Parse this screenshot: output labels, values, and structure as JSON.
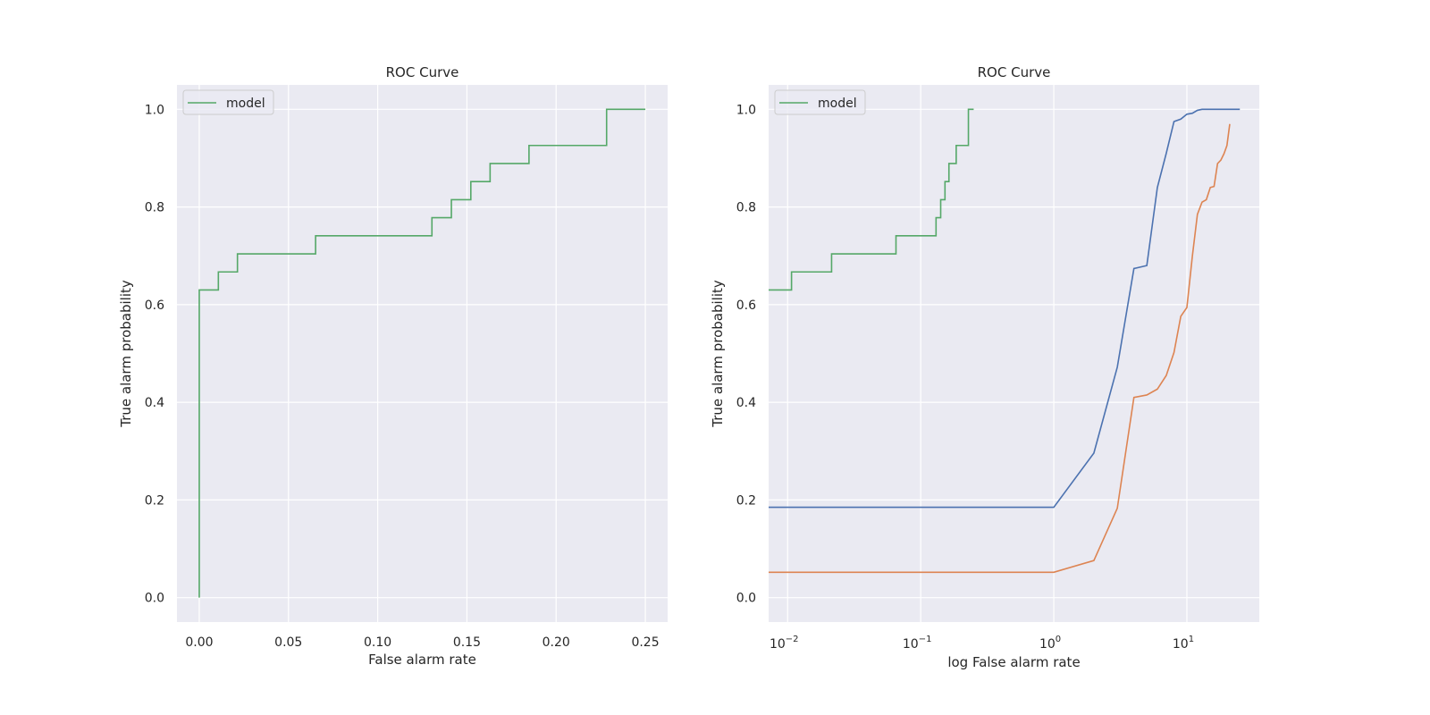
{
  "chart_data": [
    {
      "type": "line",
      "title": "ROC Curve",
      "xlabel": "False alarm rate",
      "ylabel": "True alarm probability",
      "xscale": "linear",
      "xlim": [
        -0.0125,
        0.2625
      ],
      "ylim": [
        -0.05,
        1.05
      ],
      "x_ticks": [
        0.0,
        0.05,
        0.1,
        0.15,
        0.2,
        0.25
      ],
      "x_tick_labels": [
        "0.00",
        "0.05",
        "0.10",
        "0.15",
        "0.20",
        "0.25"
      ],
      "y_ticks": [
        0.0,
        0.2,
        0.4,
        0.6,
        0.8,
        1.0
      ],
      "y_tick_labels": [
        "0.0",
        "0.2",
        "0.4",
        "0.6",
        "0.8",
        "1.0"
      ],
      "grid": true,
      "legend": "upper left",
      "series": [
        {
          "name": "model",
          "color": "#55a868",
          "x": [
            0.0,
            0.0,
            0.0107,
            0.0107,
            0.0214,
            0.0214,
            0.0652,
            0.0652,
            0.1304,
            0.1304,
            0.1413,
            0.1413,
            0.1522,
            0.1522,
            0.163,
            0.163,
            0.1848,
            0.1848,
            0.2283,
            0.2283,
            0.25
          ],
          "y": [
            0.0,
            0.63,
            0.63,
            0.667,
            0.667,
            0.704,
            0.704,
            0.741,
            0.741,
            0.778,
            0.778,
            0.815,
            0.815,
            0.852,
            0.852,
            0.889,
            0.889,
            0.926,
            0.926,
            1.0,
            1.0
          ]
        }
      ]
    },
    {
      "type": "line",
      "title": "ROC Curve",
      "xlabel": "log False alarm rate",
      "ylabel": "True alarm probability",
      "xscale": "log",
      "xlim": [
        0.0072,
        35
      ],
      "ylim": [
        -0.05,
        1.05
      ],
      "x_ticks": [
        0.01,
        0.1,
        1,
        10
      ],
      "x_tick_bases": [
        "10",
        "10",
        "10",
        "10"
      ],
      "x_tick_exponents": [
        "−2",
        "−1",
        "0",
        "1"
      ],
      "y_ticks": [
        0.0,
        0.2,
        0.4,
        0.6,
        0.8,
        1.0
      ],
      "y_tick_labels": [
        "0.0",
        "0.2",
        "0.4",
        "0.6",
        "0.8",
        "1.0"
      ],
      "grid": true,
      "legend": "upper left",
      "series": [
        {
          "name": "model",
          "color": "#55a868",
          "x": [
            0.0072,
            0.0107,
            0.0107,
            0.0214,
            0.0214,
            0.0652,
            0.0652,
            0.1304,
            0.1304,
            0.1413,
            0.1413,
            0.1522,
            0.1522,
            0.163,
            0.163,
            0.1848,
            0.1848,
            0.2283,
            0.2283,
            0.25
          ],
          "y": [
            0.63,
            0.63,
            0.667,
            0.667,
            0.704,
            0.704,
            0.741,
            0.741,
            0.778,
            0.778,
            0.815,
            0.815,
            0.852,
            0.852,
            0.889,
            0.889,
            0.926,
            0.926,
            1.0,
            1.0
          ]
        },
        {
          "color": "#4c72b0",
          "x": [
            0.0072,
            1,
            2,
            3,
            4,
            5,
            6,
            7,
            8,
            9,
            10,
            11,
            12,
            13,
            15,
            20,
            25
          ],
          "y": [
            0.185,
            0.185,
            0.296,
            0.472,
            0.674,
            0.68,
            0.84,
            0.91,
            0.975,
            0.98,
            0.99,
            0.992,
            0.998,
            1.0,
            1.0,
            1.0,
            1.0
          ]
        },
        {
          "color": "#dd8452",
          "x": [
            0.0072,
            1,
            2,
            3,
            4,
            5,
            6,
            7,
            8,
            9,
            10,
            11,
            12,
            13,
            14,
            15,
            16,
            17,
            18,
            19,
            20,
            21
          ],
          "y": [
            0.052,
            0.052,
            0.076,
            0.183,
            0.41,
            0.415,
            0.427,
            0.455,
            0.502,
            0.576,
            0.594,
            0.7,
            0.785,
            0.81,
            0.815,
            0.84,
            0.842,
            0.889,
            0.896,
            0.909,
            0.926,
            0.97
          ]
        }
      ]
    }
  ]
}
